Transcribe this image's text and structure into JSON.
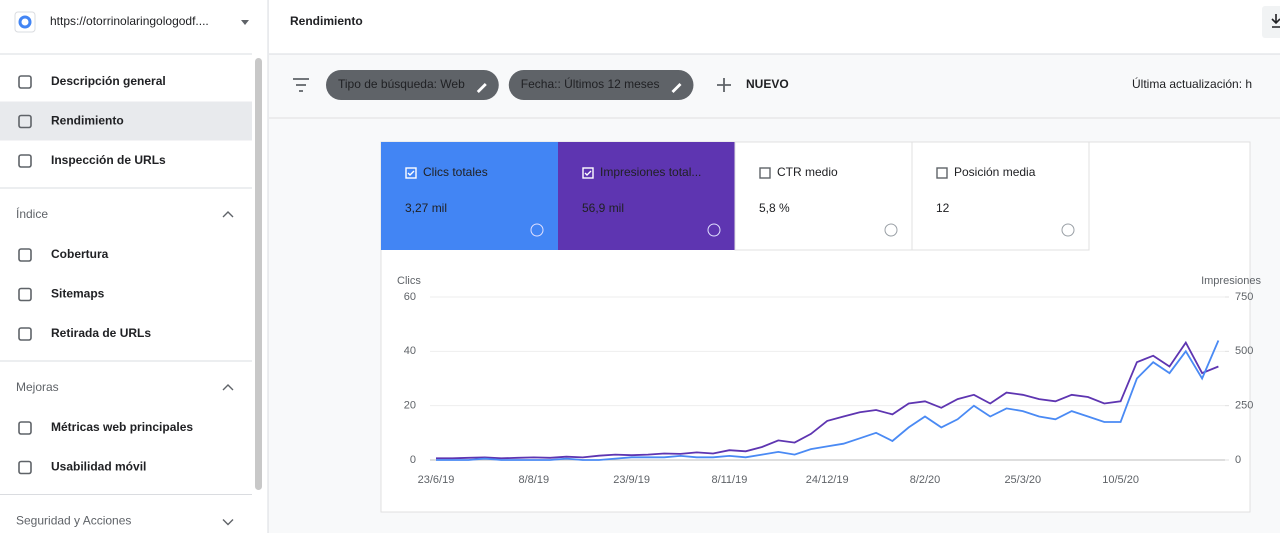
{
  "sidebar": {
    "property": "https://otorrinolaringologodf....",
    "top_items": [
      "Descripción general",
      "Rendimiento",
      "Inspección de URLs"
    ],
    "sections": [
      {
        "title": "Índice",
        "items": [
          "Cobertura",
          "Sitemaps",
          "Retirada de URLs"
        ]
      },
      {
        "title": "Mejoras",
        "items": [
          "Métricas web principales",
          "Usabilidad móvil"
        ]
      },
      {
        "title": "Seguridad y Acciones",
        "items": []
      }
    ]
  },
  "header": {
    "title": "Rendimiento"
  },
  "filters": {
    "chips": [
      "Tipo de búsqueda: Web",
      "Fecha:: Últimos 12 meses"
    ],
    "new": "NUEVO",
    "updated": "Última actualización: h"
  },
  "cards": [
    {
      "label": "Clics totales",
      "value": "3,27 mil",
      "checked": true,
      "color": "#4285f4"
    },
    {
      "label": "Impresiones total...",
      "value": "56,9 mil",
      "checked": true,
      "color": "#5e35b1"
    },
    {
      "label": "CTR medio",
      "value": "5,8 %",
      "checked": false
    },
    {
      "label": "Posición media",
      "value": "12",
      "checked": false
    }
  ],
  "chart_data": {
    "type": "line",
    "y_label": "Clics",
    "y2_label": "Impresiones",
    "categories": [
      "23/6/19",
      null,
      null,
      null,
      null,
      null,
      "8/8/19",
      null,
      null,
      null,
      null,
      null,
      "23/9/19",
      null,
      null,
      null,
      null,
      null,
      "8/11/19",
      null,
      null,
      null,
      null,
      null,
      "24/12/19",
      null,
      null,
      null,
      null,
      null,
      "8/2/20",
      null,
      null,
      null,
      null,
      null,
      "25/3/20",
      null,
      null,
      null,
      null,
      null,
      "10/5/20",
      null,
      null,
      null,
      null,
      null,
      null
    ],
    "series": [
      {
        "name": "Clics",
        "color": "#4a8af4",
        "values": [
          0,
          0,
          0,
          0.5,
          0,
          0,
          0,
          0,
          0.5,
          0,
          0,
          0.5,
          1,
          1,
          1,
          1.5,
          1,
          1,
          1.5,
          1,
          2,
          3,
          2,
          4,
          5,
          6,
          8,
          10,
          7,
          12,
          16,
          12,
          15,
          20,
          16,
          19,
          18,
          16,
          15,
          18,
          16,
          14,
          14,
          30,
          36,
          32,
          40,
          30,
          44
        ]
      },
      {
        "name": "Impresiones",
        "color": "#5e35b1",
        "axis": "y2",
        "values": [
          8,
          8,
          10,
          12,
          8,
          10,
          12,
          10,
          15,
          12,
          20,
          25,
          22,
          25,
          30,
          28,
          35,
          30,
          45,
          40,
          60,
          90,
          80,
          120,
          180,
          200,
          220,
          230,
          210,
          260,
          270,
          240,
          280,
          300,
          260,
          310,
          300,
          280,
          270,
          300,
          290,
          260,
          270,
          450,
          480,
          430,
          540,
          400,
          430
        ]
      }
    ],
    "ylim": [
      0,
      60
    ],
    "yticks": [
      0,
      20,
      40,
      60
    ],
    "y2lim": [
      0,
      750
    ],
    "y2ticks": [
      0,
      250,
      500,
      750
    ],
    "grid": true
  }
}
